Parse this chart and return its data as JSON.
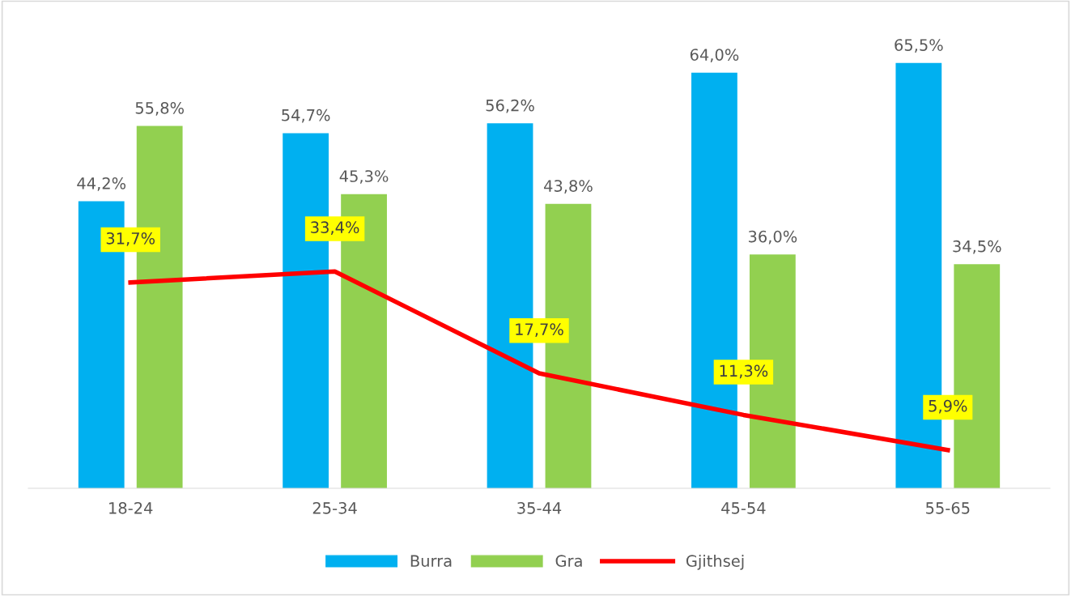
{
  "chart_data": {
    "type": "bar",
    "categories": [
      "18-24",
      "25-34",
      "35-44",
      "45-54",
      "55-65"
    ],
    "series": [
      {
        "name": "Burra",
        "color": "#00b0f0",
        "values": [
          44.2,
          54.7,
          56.2,
          64.0,
          65.5
        ],
        "value_labels": [
          "44,2%",
          "54,7%",
          "56,2%",
          "64,0%",
          "65,5%"
        ]
      },
      {
        "name": "Gra",
        "color": "#92d050",
        "values": [
          55.8,
          45.3,
          43.8,
          36.0,
          34.5
        ],
        "value_labels": [
          "55,8%",
          "45,3%",
          "43,8%",
          "36,0%",
          "34,5%"
        ]
      },
      {
        "name": "Gjithsej",
        "type": "line",
        "color": "#ff0000",
        "values": [
          31.7,
          33.4,
          17.7,
          11.3,
          5.9
        ],
        "value_labels": [
          "31,7%",
          "33,4%",
          "17,7%",
          "11,3%",
          "5,9%"
        ]
      }
    ],
    "legend": "bottom",
    "grid": false,
    "marker": "none",
    "line_style": "solid"
  }
}
